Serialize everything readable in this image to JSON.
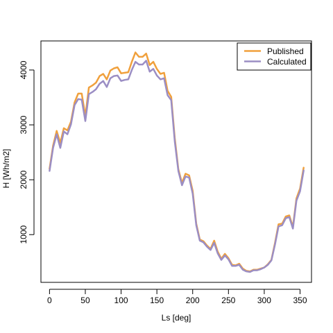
{
  "chart_data": {
    "type": "line",
    "title": "",
    "xlabel": "Ls [deg]",
    "ylabel": "H [Wh/m2]",
    "xlim": [
      -12,
      366
    ],
    "ylim": [
      130,
      4530
    ],
    "x_ticks": [
      0,
      50,
      100,
      150,
      200,
      250,
      300,
      350
    ],
    "y_ticks": [
      1000,
      2000,
      3000,
      4000
    ],
    "grid": false,
    "legend_position": "top-right",
    "x": [
      0,
      5,
      10,
      15,
      20,
      25,
      30,
      35,
      40,
      45,
      50,
      55,
      60,
      65,
      70,
      75,
      80,
      85,
      90,
      95,
      100,
      105,
      110,
      115,
      120,
      125,
      130,
      135,
      140,
      145,
      150,
      155,
      160,
      165,
      170,
      175,
      180,
      185,
      190,
      195,
      200,
      205,
      210,
      215,
      220,
      225,
      230,
      235,
      240,
      245,
      250,
      255,
      260,
      265,
      270,
      275,
      280,
      285,
      290,
      295,
      300,
      305,
      310,
      315,
      320,
      325,
      330,
      335,
      340,
      345,
      350,
      355
    ],
    "series": [
      {
        "name": "Published",
        "color": "#f0a03c",
        "values": [
          2200,
          2620,
          2890,
          2670,
          2940,
          2900,
          3060,
          3410,
          3570,
          3570,
          3160,
          3680,
          3720,
          3770,
          3890,
          3930,
          3830,
          3990,
          4030,
          4050,
          3940,
          3950,
          3960,
          4150,
          4320,
          4240,
          4240,
          4300,
          4090,
          4150,
          4020,
          3930,
          3950,
          3620,
          3510,
          2760,
          2190,
          1940,
          2110,
          2080,
          1800,
          1200,
          910,
          880,
          800,
          740,
          890,
          690,
          560,
          650,
          570,
          450,
          440,
          470,
          380,
          340,
          330,
          360,
          360,
          380,
          400,
          460,
          540,
          850,
          1190,
          1200,
          1330,
          1350,
          1140,
          1660,
          1840,
          2220
        ]
      },
      {
        "name": "Calculated",
        "color": "#9b8ec4",
        "values": [
          2160,
          2580,
          2830,
          2580,
          2880,
          2830,
          3010,
          3360,
          3470,
          3460,
          3070,
          3560,
          3600,
          3650,
          3750,
          3800,
          3690,
          3850,
          3890,
          3900,
          3800,
          3820,
          3830,
          4000,
          4150,
          4100,
          4100,
          4170,
          3970,
          4020,
          3900,
          3830,
          3850,
          3540,
          3450,
          2700,
          2160,
          1900,
          2060,
          2040,
          1750,
          1170,
          890,
          860,
          780,
          720,
          850,
          660,
          540,
          620,
          550,
          430,
          430,
          450,
          360,
          330,
          320,
          350,
          350,
          370,
          400,
          450,
          530,
          820,
          1150,
          1170,
          1300,
          1320,
          1110,
          1620,
          1790,
          2170
        ]
      }
    ]
  }
}
